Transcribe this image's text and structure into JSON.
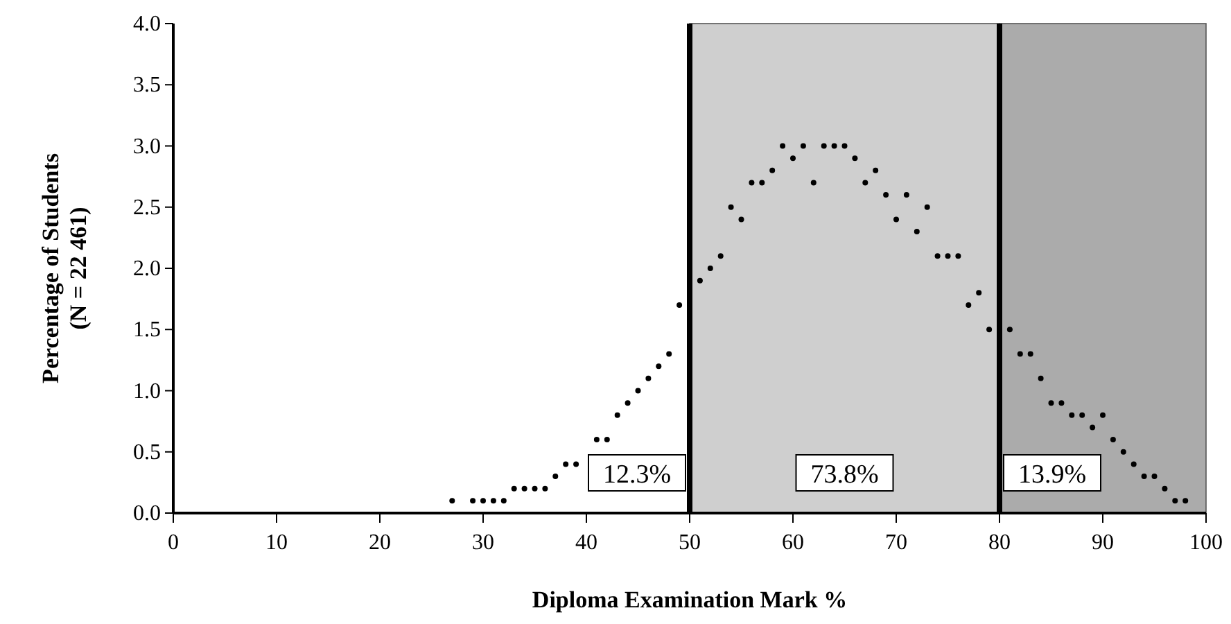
{
  "chart_data": {
    "type": "scatter",
    "xlabel": "Diploma Examination Mark %",
    "ylabel": "Percentage of Students\n(N = 22 461)",
    "series": [
      {
        "color": "#000000",
        "x": [
          27,
          29,
          30,
          31,
          32,
          33,
          34,
          35,
          36,
          37,
          38,
          39,
          41,
          42,
          43,
          44,
          45,
          46,
          47,
          48,
          49,
          51,
          52,
          53,
          54,
          55,
          56,
          57,
          58,
          59,
          60,
          61,
          62,
          63,
          64,
          65,
          66,
          67,
          68,
          69,
          70,
          71,
          72,
          73,
          74,
          75,
          76,
          77,
          78,
          79,
          81,
          82,
          83,
          84,
          85,
          86,
          87,
          88,
          89,
          90,
          91,
          92,
          93,
          94,
          95,
          96,
          97,
          98
        ],
        "values": [
          0.1,
          0.1,
          0.1,
          0.1,
          0.1,
          0.2,
          0.2,
          0.2,
          0.2,
          0.3,
          0.4,
          0.4,
          0.6,
          0.6,
          0.8,
          0.9,
          1.0,
          1.1,
          1.2,
          1.3,
          1.7,
          1.9,
          2.0,
          2.1,
          2.5,
          2.4,
          2.7,
          2.7,
          2.8,
          3.0,
          2.9,
          3.0,
          2.7,
          3.0,
          3.0,
          3.0,
          2.9,
          2.7,
          2.8,
          2.6,
          2.4,
          2.6,
          2.3,
          2.5,
          2.1,
          2.1,
          2.1,
          1.7,
          1.8,
          1.5,
          1.5,
          1.3,
          1.3,
          1.1,
          0.9,
          0.9,
          0.8,
          0.8,
          0.7,
          0.8,
          0.6,
          0.5,
          0.4,
          0.3,
          0.3,
          0.2,
          0.1,
          0.1
        ]
      }
    ],
    "xlim": [
      0,
      100
    ],
    "xticks": [
      0,
      10,
      20,
      30,
      40,
      50,
      60,
      70,
      80,
      90,
      100
    ],
    "ylim": [
      0,
      4
    ],
    "yticks": [
      {
        "value": 0,
        "label": "0.0"
      },
      {
        "value": 0.5,
        "label": "0.5"
      },
      {
        "value": 1,
        "label": "1.0"
      },
      {
        "value": 1.5,
        "label": "1.5"
      },
      {
        "value": 2,
        "label": "2.0"
      },
      {
        "value": 2.5,
        "label": "2.5"
      },
      {
        "value": 3,
        "label": "3.0"
      },
      {
        "value": 3.5,
        "label": "3.5"
      },
      {
        "value": 4,
        "label": "4.0"
      }
    ],
    "annotations": [
      "12.3%"
    ],
    "bands": [
      {
        "axis": "x",
        "from": 50,
        "to": 80,
        "label": "73.8%",
        "color": "#cfcfcf"
      },
      {
        "axis": "x",
        "from": 80,
        "to": 100,
        "label": "13.9%",
        "color": "#ababab"
      }
    ],
    "ref_lines": [
      {
        "axis": "x",
        "value": 50,
        "color": "#000000"
      },
      {
        "axis": "x",
        "value": 80,
        "color": "#000000"
      }
    ],
    "marker": "circle",
    "grid": false
  }
}
